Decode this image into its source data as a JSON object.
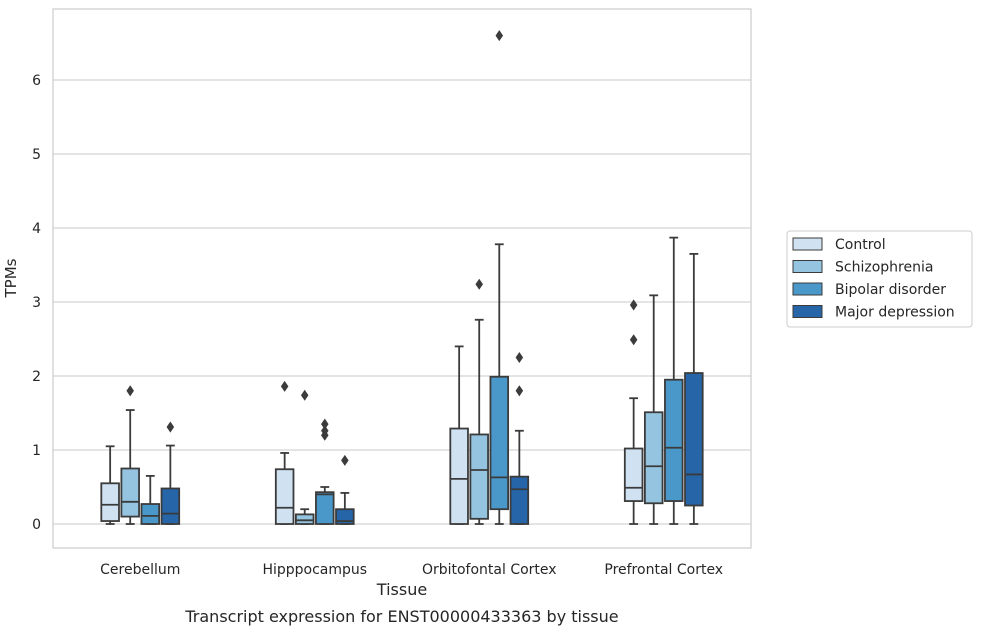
{
  "chart_data": {
    "type": "box",
    "caption": "Transcript expression for ENST00000433363 by tissue",
    "xlabel": "Tissue",
    "ylabel": "TPMs",
    "ylim": [
      -0.32,
      6.95
    ],
    "yticks": [
      0,
      1,
      2,
      3,
      4,
      5,
      6
    ],
    "grid": "horizontal",
    "legend_position": "right",
    "categories": [
      "Cerebellum",
      "Hipppocampus",
      "Orbitofontal Cortex",
      "Prefrontal Cortex"
    ],
    "series": [
      {
        "name": "Control",
        "color": "#d0e1f2",
        "boxes": [
          {
            "whisker_low": 0.0,
            "q1": 0.04,
            "median": 0.26,
            "q3": 0.55,
            "whisker_high": 1.05,
            "outliers": []
          },
          {
            "whisker_low": 0.0,
            "q1": 0.0,
            "median": 0.22,
            "q3": 0.74,
            "whisker_high": 0.96,
            "outliers": [
              1.86
            ]
          },
          {
            "whisker_low": 0.0,
            "q1": 0.0,
            "median": 0.61,
            "q3": 1.29,
            "whisker_high": 2.4,
            "outliers": []
          },
          {
            "whisker_low": 0.0,
            "q1": 0.31,
            "median": 0.49,
            "q3": 1.02,
            "whisker_high": 1.7,
            "outliers": [
              2.49,
              2.96
            ]
          }
        ]
      },
      {
        "name": "Schizophrenia",
        "color": "#94c4df",
        "boxes": [
          {
            "whisker_low": 0.0,
            "q1": 0.1,
            "median": 0.3,
            "q3": 0.75,
            "whisker_high": 1.54,
            "outliers": [
              1.8
            ]
          },
          {
            "whisker_low": 0.0,
            "q1": 0.0,
            "median": 0.05,
            "q3": 0.13,
            "whisker_high": 0.2,
            "outliers": [
              1.74
            ]
          },
          {
            "whisker_low": 0.0,
            "q1": 0.07,
            "median": 0.73,
            "q3": 1.21,
            "whisker_high": 2.76,
            "outliers": [
              3.24
            ]
          },
          {
            "whisker_low": 0.0,
            "q1": 0.28,
            "median": 0.78,
            "q3": 1.51,
            "whisker_high": 3.09,
            "outliers": []
          }
        ]
      },
      {
        "name": "Bipolar disorder",
        "color": "#4a98c9",
        "boxes": [
          {
            "whisker_low": 0.0,
            "q1": 0.0,
            "median": 0.11,
            "q3": 0.27,
            "whisker_high": 0.65,
            "outliers": []
          },
          {
            "whisker_low": 0.0,
            "q1": 0.0,
            "median": 0.4,
            "q3": 0.43,
            "whisker_high": 0.5,
            "outliers": [
              1.2,
              1.26,
              1.35
            ]
          },
          {
            "whisker_low": 0.0,
            "q1": 0.2,
            "median": 0.63,
            "q3": 1.99,
            "whisker_high": 3.78,
            "outliers": [
              6.6
            ]
          },
          {
            "whisker_low": 0.0,
            "q1": 0.31,
            "median": 1.03,
            "q3": 1.95,
            "whisker_high": 3.87,
            "outliers": []
          }
        ]
      },
      {
        "name": "Major depression",
        "color": "#2565a8",
        "boxes": [
          {
            "whisker_low": 0.0,
            "q1": 0.0,
            "median": 0.14,
            "q3": 0.48,
            "whisker_high": 1.06,
            "outliers": [
              1.31
            ]
          },
          {
            "whisker_low": 0.0,
            "q1": 0.0,
            "median": 0.04,
            "q3": 0.2,
            "whisker_high": 0.42,
            "outliers": [
              0.86
            ]
          },
          {
            "whisker_low": 0.0,
            "q1": 0.0,
            "median": 0.47,
            "q3": 0.64,
            "whisker_high": 1.26,
            "outliers": [
              1.8,
              2.25
            ]
          },
          {
            "whisker_low": 0.0,
            "q1": 0.25,
            "median": 0.67,
            "q3": 2.04,
            "whisker_high": 3.65,
            "outliers": []
          }
        ]
      }
    ]
  }
}
